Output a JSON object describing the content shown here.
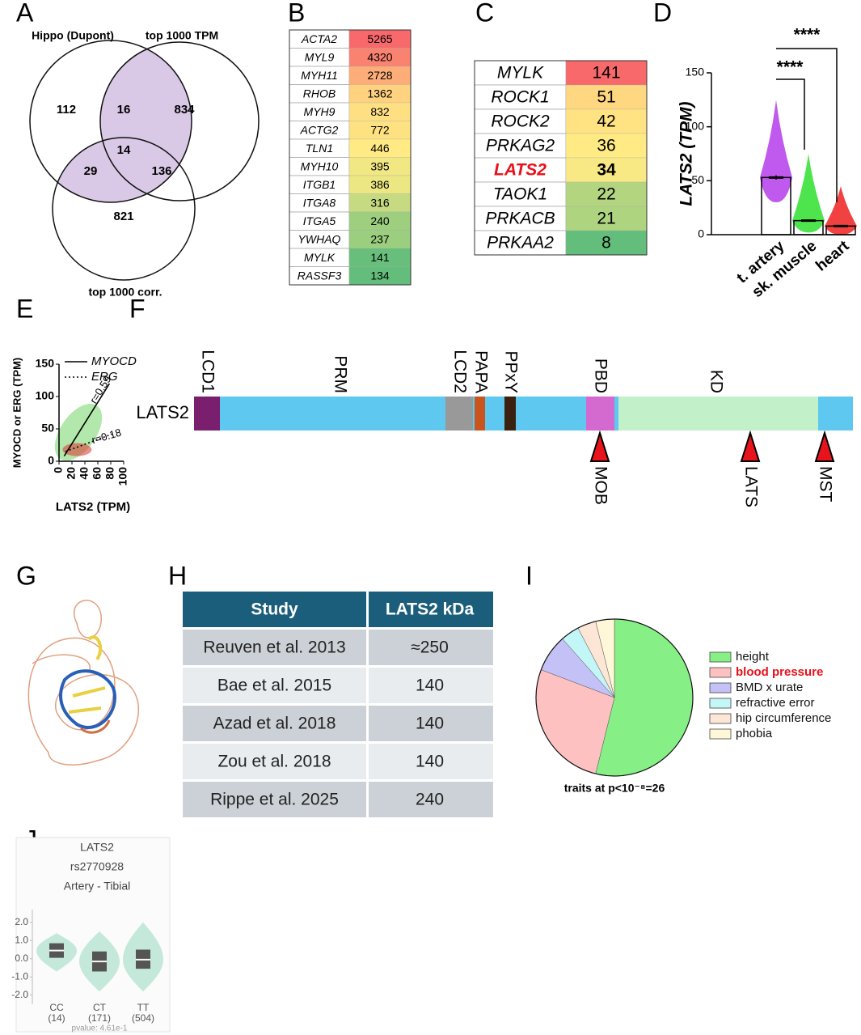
{
  "panel_labels": [
    "A",
    "B",
    "C",
    "D",
    "E",
    "F",
    "G",
    "H",
    "I",
    "J"
  ],
  "venn": {
    "sets": [
      "Hippo (Dupont)",
      "top 1000 TPM",
      "top 1000 corr."
    ],
    "counts": [
      112,
      16,
      834,
      14,
      29,
      136,
      821
    ],
    "overlap_color": "#d9c9e7"
  },
  "table_b": {
    "rows": [
      {
        "gene": "ACTA2",
        "value": 5265
      },
      {
        "gene": "MYL9",
        "value": 4320
      },
      {
        "gene": "MYH11",
        "value": 2728
      },
      {
        "gene": "RHOB",
        "value": 1362
      },
      {
        "gene": "MYH9",
        "value": 832
      },
      {
        "gene": "ACTG2",
        "value": 772
      },
      {
        "gene": "TLN1",
        "value": 446
      },
      {
        "gene": "MYH10",
        "value": 395
      },
      {
        "gene": "ITGB1",
        "value": 386
      },
      {
        "gene": "ITGA8",
        "value": 316
      },
      {
        "gene": "ITGA5",
        "value": 240
      },
      {
        "gene": "YWHAQ",
        "value": 237
      },
      {
        "gene": "MYLK",
        "value": 141
      },
      {
        "gene": "RASSF3",
        "value": 134
      }
    ]
  },
  "table_c": {
    "rows": [
      {
        "gene": "MYLK",
        "value": 141
      },
      {
        "gene": "ROCK1",
        "value": 51
      },
      {
        "gene": "ROCK2",
        "value": 42
      },
      {
        "gene": "PRKAG2",
        "value": 36
      },
      {
        "gene": "LATS2",
        "value": 34,
        "color": "#e8101a",
        "bold": true
      },
      {
        "gene": "TAOK1",
        "value": 22
      },
      {
        "gene": "PRKACB",
        "value": 21
      },
      {
        "gene": "PRKAA2",
        "value": 8
      }
    ]
  },
  "chart_data": [
    {
      "type": "bar",
      "y_label": "LATS2 (TPM)",
      "categories": [
        "t. artery",
        "sk. muscle",
        "heart"
      ],
      "values": [
        53,
        13,
        8
      ],
      "errors": [
        2,
        1,
        1
      ],
      "ranges": [
        [
          30,
          125
        ],
        [
          2,
          75
        ],
        [
          0,
          45
        ]
      ],
      "colors": [
        "#b030e8",
        "#22dd22",
        "#ee1111"
      ],
      "ylim": [
        0,
        150
      ],
      "yticks": [
        0,
        50,
        100,
        150
      ],
      "annotations": [
        "****",
        "****"
      ]
    },
    {
      "type": "scatter",
      "x_label": "LATS2 (TPM)",
      "y_label": "MYOCD or ERG (TPM)",
      "xlim": [
        0,
        100
      ],
      "xticks": [
        0,
        20,
        40,
        60,
        80,
        100
      ],
      "ylim": [
        0,
        150
      ],
      "yticks": [
        0,
        50,
        100,
        150
      ],
      "series": [
        {
          "name": "MYOCD",
          "color": "#55cc44",
          "dash": "solid",
          "x": [
            8,
            78
          ],
          "values": [
            8,
            120
          ],
          "label": "r=0.59"
        },
        {
          "name": "ERG",
          "color": "#e03030",
          "dash": "dotted",
          "x": [
            10,
            82
          ],
          "values": [
            15,
            42
          ],
          "label": "r=0.18"
        }
      ]
    },
    {
      "type": "pie",
      "categories": [
        "height",
        "blood pressure",
        "BMD x urate",
        "refractive error",
        "hip circumference",
        "phobia"
      ],
      "values": [
        14,
        7,
        2,
        1,
        1,
        1
      ],
      "colors": [
        "#86f086",
        "#fdc1c1",
        "#c3c1f6",
        "#c3f6f6",
        "#fde6d6",
        "#fff8d8"
      ],
      "legend_colors": [
        "#111111",
        "#e8101a",
        "#111111",
        "#111111",
        "#111111",
        "#111111"
      ],
      "caption": "traits at p<10⁻⁸=26"
    },
    {
      "type": "violin",
      "title": [
        "LATS2",
        "rs2770928",
        "Artery - Tibial"
      ],
      "categories": [
        "CC",
        "CT",
        "TT"
      ],
      "counts": [
        "(14)",
        "(171)",
        "(504)"
      ],
      "medians": [
        0.45,
        -0.15,
        -0.05
      ],
      "q1": [
        0.05,
        -0.7,
        -0.55
      ],
      "q3": [
        0.85,
        0.4,
        0.5
      ],
      "mins": [
        -0.7,
        -1.8,
        -1.8
      ],
      "maxs": [
        1.4,
        1.5,
        2.0
      ],
      "color": "#c4e9db",
      "ylim": [
        -2.5,
        2.7
      ],
      "yticks": [
        {
          "value": 2,
          "label": "2.0"
        },
        {
          "value": 1,
          "label": "1.0"
        },
        {
          "value": 0,
          "label": "0.0"
        },
        {
          "value": -1,
          "label": "-1.0"
        },
        {
          "value": -2,
          "label": "-2.0"
        }
      ],
      "footer": "pvalue: 4.61e-1"
    }
  ],
  "domain_map": {
    "protein": "LATS2",
    "base_color": "#5ec8f0",
    "domains": [
      {
        "label": "LCD1",
        "color": "#7a1f6e"
      },
      {
        "label": "PRM"
      },
      {
        "label": "LCD2",
        "color": "#999999"
      },
      {
        "label": "PAPA",
        "color": "#c9541e"
      },
      {
        "label": "PPxY",
        "color": "#3a2110"
      },
      {
        "label": "PBD",
        "color": "#d46ad0"
      },
      {
        "label": "KD",
        "color": "#c2f0c8"
      }
    ],
    "sites": [
      "MOB",
      "LATS",
      "MST"
    ],
    "site_color": "#e8141c"
  },
  "table_h": {
    "header": [
      "Study",
      "LATS2 kDa"
    ],
    "rows": [
      [
        "Reuven et al. 2013",
        "≈250"
      ],
      [
        "Bae et al. 2015",
        140
      ],
      [
        "Azad et al. 2018",
        140
      ],
      [
        "Zou et al. 2018",
        140
      ],
      [
        "Rippe et al. 2025",
        240
      ]
    ],
    "header_color": "#1b5e7b"
  }
}
